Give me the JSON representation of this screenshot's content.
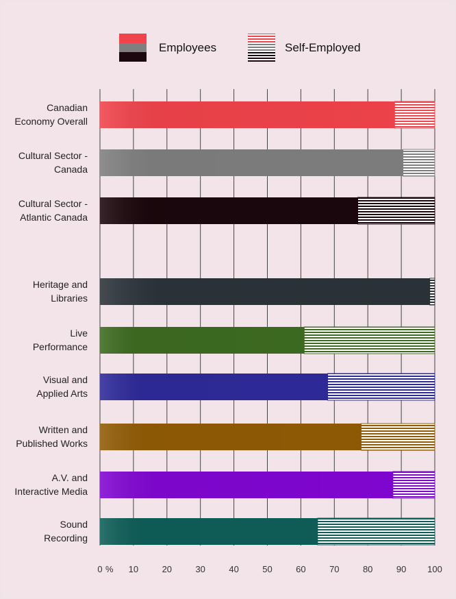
{
  "chart_data": {
    "type": "bar",
    "orientation": "horizontal",
    "stacked": true,
    "legend": {
      "placement": "top",
      "entries": [
        "Employees",
        "Self-Employed"
      ]
    },
    "xlim": [
      0,
      100
    ],
    "x_ticks": [
      "0",
      "10",
      "20",
      "30",
      "40",
      "50",
      "60",
      "70",
      "80",
      "90",
      "100"
    ],
    "x_unit": "%",
    "grid": true,
    "categories": [
      {
        "label": [
          "Canadian",
          "Economy Overall"
        ],
        "employees": 88,
        "self_employed": 12,
        "color": "#f0434b"
      },
      {
        "label": [
          "Cultural Sector -",
          "Canada"
        ],
        "employees": 90.5,
        "self_employed": 9.5,
        "color": "#7f7f7f"
      },
      {
        "label": [
          "Cultural Sector -",
          "Atlantic Canada"
        ],
        "employees": 77,
        "self_employed": 23,
        "color": "#1b070d"
      },
      {
        "label": [
          "Heritage and",
          "Libraries"
        ],
        "employees": 98.5,
        "self_employed": 1.5,
        "color": "#2b3339"
      },
      {
        "label": [
          "Live",
          "Performance"
        ],
        "employees": 61,
        "self_employed": 39,
        "color": "#3d6b21"
      },
      {
        "label": [
          "Visual and",
          "Applied Arts"
        ],
        "employees": 68,
        "self_employed": 32,
        "color": "#2e2a9a"
      },
      {
        "label": [
          "Written and",
          "Published Works"
        ],
        "employees": 78,
        "self_employed": 22,
        "color": "#915b05"
      },
      {
        "label": [
          "A.V. and",
          "Interactive Media"
        ],
        "employees": 87.5,
        "self_employed": 12.5,
        "color": "#8106d2"
      },
      {
        "label": [
          "Sound",
          "Recording"
        ],
        "employees": 65,
        "self_employed": 35,
        "color": "#0f5e58"
      }
    ]
  }
}
